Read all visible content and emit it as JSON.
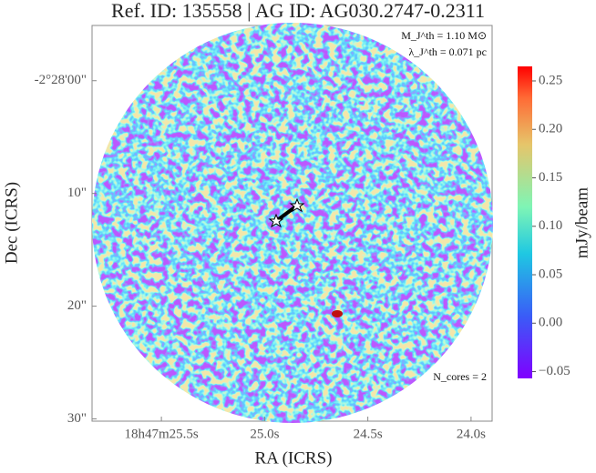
{
  "chart_data": {
    "type": "image",
    "title": "Ref. ID: 135558 | AG ID: AG030.2747-0.2311",
    "x_label": "RA (ICRS)",
    "y_label": "Dec (ICRS)",
    "xlim": [
      25.836,
      23.898
    ],
    "xticks": [
      {
        "value": 25.5,
        "label": "18h47m25.5s"
      },
      {
        "value": 25.0,
        "label": "25.0s"
      },
      {
        "value": 24.5,
        "label": "24.5s"
      },
      {
        "value": 24.0,
        "label": "24.0s"
      }
    ],
    "ylim": [
      30.2,
      -4.9
    ],
    "yticks": [
      {
        "value": 0,
        "label": "-2°28'00\""
      },
      {
        "value": 10,
        "label": "10\""
      },
      {
        "value": 20,
        "label": "20\""
      },
      {
        "value": 30,
        "label": "30\""
      }
    ],
    "colorbar": {
      "label": "mJy/beam",
      "lim": [
        -0.057,
        0.265
      ],
      "ticks": [
        {
          "value": 0.25,
          "label": "0.25"
        },
        {
          "value": 0.2,
          "label": "0.20"
        },
        {
          "value": 0.15,
          "label": "0.15"
        },
        {
          "value": 0.1,
          "label": "0.10"
        },
        {
          "value": 0.05,
          "label": "0.05"
        },
        {
          "value": 0,
          "label": "0.00"
        },
        {
          "value": -0.05,
          "label": "−0.05"
        }
      ]
    },
    "annotations": [
      "M_J^th = 1.10 M⊙",
      "λ_J^th = 0.071 pc",
      "N_cores = 2"
    ]
  }
}
